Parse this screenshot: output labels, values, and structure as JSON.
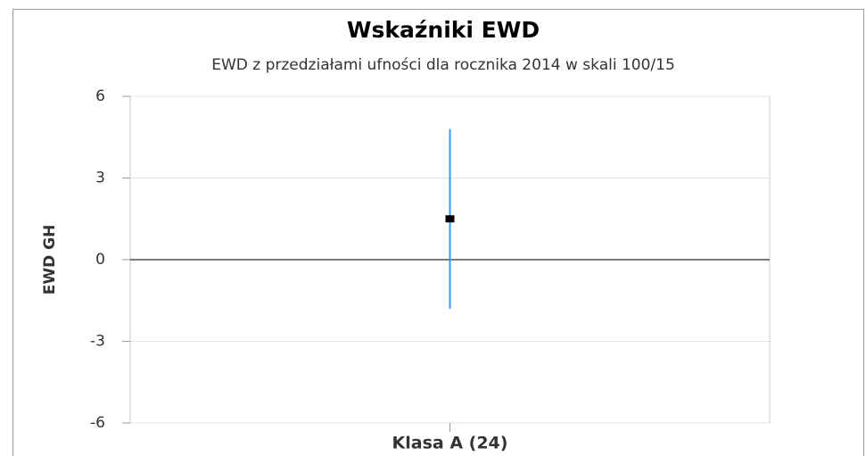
{
  "chart_data": {
    "type": "errorbar",
    "title": "Wskaźniki EWD",
    "subtitle": "EWD z przedziałami ufności dla rocznika 2014 w skali 100/15",
    "y_label": "EWD GH",
    "categories": [
      "Klasa A (24)"
    ],
    "values": [
      1.5
    ],
    "errors": [
      3.3
    ],
    "color": "#000000",
    "error_color": "#3399ff",
    "ylim": [
      -6,
      6
    ],
    "yticks": [
      6,
      3,
      0,
      -3,
      -6
    ],
    "grid": true
  }
}
